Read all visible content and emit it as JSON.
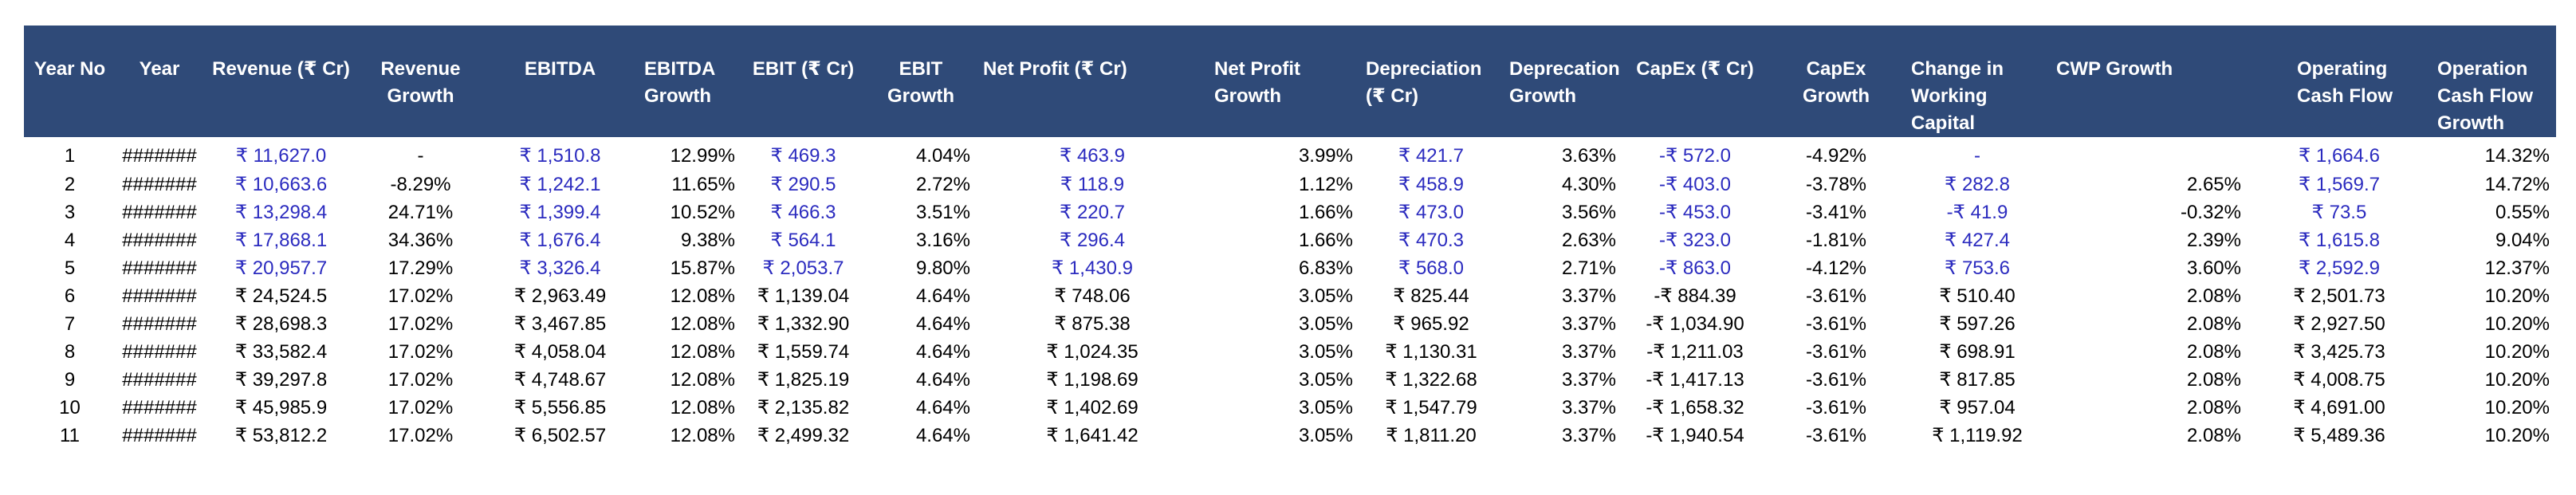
{
  "colors": {
    "header_background": "#2f4a78",
    "header_text": "#ffffff",
    "historical_value_text": "#2b2bbf",
    "forecast_value_text": "#000000"
  },
  "headers": {
    "year_no": "Year No",
    "year": "Year",
    "revenue": "Revenue (₹ Cr)",
    "revenue_growth": "Revenue Growth",
    "ebitda": "EBITDA",
    "ebitda_growth": "EBITDA Growth",
    "ebit": "EBIT (₹ Cr)",
    "ebit_growth": "EBIT Growth",
    "net_profit": "Net Profit (₹ Cr)",
    "net_profit_growth": "Net Profit Growth",
    "depreciation": "Depreciation (₹ Cr)",
    "depreciation_growth": "Deprecation Growth",
    "capex": "CapEx (₹ Cr)",
    "capex_growth": "CapEx Growth",
    "change_wc": "Change in Working Capital",
    "cwp_growth": "CWP Growth",
    "ocf": "Operating Cash Flow",
    "ocf_growth": "Operation Cash Flow Growth"
  },
  "rows": [
    {
      "year_no": "1",
      "year": "#######",
      "revenue": "₹ 11,627.0",
      "revenue_growth": "-",
      "ebitda": "₹ 1,510.8",
      "ebitda_growth": "12.99%",
      "ebit": "₹ 469.3",
      "ebit_growth": "4.04%",
      "net_profit": "₹ 463.9",
      "net_profit_growth": "3.99%",
      "depreciation": "₹ 421.7",
      "depreciation_growth": "3.63%",
      "capex": "-₹ 572.0",
      "capex_growth": "-4.92%",
      "change_wc": "-",
      "cwp_growth": "",
      "ocf": "₹ 1,664.6",
      "ocf_growth": "14.32%"
    },
    {
      "year_no": "2",
      "year": "#######",
      "revenue": "₹ 10,663.6",
      "revenue_growth": "-8.29%",
      "ebitda": "₹ 1,242.1",
      "ebitda_growth": "11.65%",
      "ebit": "₹ 290.5",
      "ebit_growth": "2.72%",
      "net_profit": "₹ 118.9",
      "net_profit_growth": "1.12%",
      "depreciation": "₹ 458.9",
      "depreciation_growth": "4.30%",
      "capex": "-₹ 403.0",
      "capex_growth": "-3.78%",
      "change_wc": "₹ 282.8",
      "cwp_growth": "2.65%",
      "ocf": "₹ 1,569.7",
      "ocf_growth": "14.72%"
    },
    {
      "year_no": "3",
      "year": "#######",
      "revenue": "₹ 13,298.4",
      "revenue_growth": "24.71%",
      "ebitda": "₹ 1,399.4",
      "ebitda_growth": "10.52%",
      "ebit": "₹ 466.3",
      "ebit_growth": "3.51%",
      "net_profit": "₹ 220.7",
      "net_profit_growth": "1.66%",
      "depreciation": "₹ 473.0",
      "depreciation_growth": "3.56%",
      "capex": "-₹ 453.0",
      "capex_growth": "-3.41%",
      "change_wc": "-₹ 41.9",
      "cwp_growth": "-0.32%",
      "ocf": "₹ 73.5",
      "ocf_growth": "0.55%"
    },
    {
      "year_no": "4",
      "year": "#######",
      "revenue": "₹ 17,868.1",
      "revenue_growth": "34.36%",
      "ebitda": "₹ 1,676.4",
      "ebitda_growth": "9.38%",
      "ebit": "₹ 564.1",
      "ebit_growth": "3.16%",
      "net_profit": "₹ 296.4",
      "net_profit_growth": "1.66%",
      "depreciation": "₹ 470.3",
      "depreciation_growth": "2.63%",
      "capex": "-₹ 323.0",
      "capex_growth": "-1.81%",
      "change_wc": "₹ 427.4",
      "cwp_growth": "2.39%",
      "ocf": "₹ 1,615.8",
      "ocf_growth": "9.04%"
    },
    {
      "year_no": "5",
      "year": "#######",
      "revenue": "₹ 20,957.7",
      "revenue_growth": "17.29%",
      "ebitda": "₹ 3,326.4",
      "ebitda_growth": "15.87%",
      "ebit": "₹ 2,053.7",
      "ebit_growth": "9.80%",
      "net_profit": "₹ 1,430.9",
      "net_profit_growth": "6.83%",
      "depreciation": "₹ 568.0",
      "depreciation_growth": "2.71%",
      "capex": "-₹ 863.0",
      "capex_growth": "-4.12%",
      "change_wc": "₹ 753.6",
      "cwp_growth": "3.60%",
      "ocf": "₹ 2,592.9",
      "ocf_growth": "12.37%"
    },
    {
      "year_no": "6",
      "year": "#######",
      "revenue": "₹ 24,524.5",
      "revenue_growth": "17.02%",
      "ebitda": "₹ 2,963.49",
      "ebitda_growth": "12.08%",
      "ebit": "₹ 1,139.04",
      "ebit_growth": "4.64%",
      "net_profit": "₹ 748.06",
      "net_profit_growth": "3.05%",
      "depreciation": "₹ 825.44",
      "depreciation_growth": "3.37%",
      "capex": "-₹ 884.39",
      "capex_growth": "-3.61%",
      "change_wc": "₹ 510.40",
      "cwp_growth": "2.08%",
      "ocf": "₹ 2,501.73",
      "ocf_growth": "10.20%"
    },
    {
      "year_no": "7",
      "year": "#######",
      "revenue": "₹ 28,698.3",
      "revenue_growth": "17.02%",
      "ebitda": "₹ 3,467.85",
      "ebitda_growth": "12.08%",
      "ebit": "₹ 1,332.90",
      "ebit_growth": "4.64%",
      "net_profit": "₹ 875.38",
      "net_profit_growth": "3.05%",
      "depreciation": "₹ 965.92",
      "depreciation_growth": "3.37%",
      "capex": "-₹ 1,034.90",
      "capex_growth": "-3.61%",
      "change_wc": "₹ 597.26",
      "cwp_growth": "2.08%",
      "ocf": "₹ 2,927.50",
      "ocf_growth": "10.20%"
    },
    {
      "year_no": "8",
      "year": "#######",
      "revenue": "₹ 33,582.4",
      "revenue_growth": "17.02%",
      "ebitda": "₹ 4,058.04",
      "ebitda_growth": "12.08%",
      "ebit": "₹ 1,559.74",
      "ebit_growth": "4.64%",
      "net_profit": "₹ 1,024.35",
      "net_profit_growth": "3.05%",
      "depreciation": "₹ 1,130.31",
      "depreciation_growth": "3.37%",
      "capex": "-₹ 1,211.03",
      "capex_growth": "-3.61%",
      "change_wc": "₹ 698.91",
      "cwp_growth": "2.08%",
      "ocf": "₹ 3,425.73",
      "ocf_growth": "10.20%"
    },
    {
      "year_no": "9",
      "year": "#######",
      "revenue": "₹ 39,297.8",
      "revenue_growth": "17.02%",
      "ebitda": "₹ 4,748.67",
      "ebitda_growth": "12.08%",
      "ebit": "₹ 1,825.19",
      "ebit_growth": "4.64%",
      "net_profit": "₹ 1,198.69",
      "net_profit_growth": "3.05%",
      "depreciation": "₹ 1,322.68",
      "depreciation_growth": "3.37%",
      "capex": "-₹ 1,417.13",
      "capex_growth": "-3.61%",
      "change_wc": "₹ 817.85",
      "cwp_growth": "2.08%",
      "ocf": "₹ 4,008.75",
      "ocf_growth": "10.20%"
    },
    {
      "year_no": "10",
      "year": "#######",
      "revenue": "₹ 45,985.9",
      "revenue_growth": "17.02%",
      "ebitda": "₹ 5,556.85",
      "ebitda_growth": "12.08%",
      "ebit": "₹ 2,135.82",
      "ebit_growth": "4.64%",
      "net_profit": "₹ 1,402.69",
      "net_profit_growth": "3.05%",
      "depreciation": "₹ 1,547.79",
      "depreciation_growth": "3.37%",
      "capex": "-₹ 1,658.32",
      "capex_growth": "-3.61%",
      "change_wc": "₹ 957.04",
      "cwp_growth": "2.08%",
      "ocf": "₹ 4,691.00",
      "ocf_growth": "10.20%"
    },
    {
      "year_no": "11",
      "year": "#######",
      "revenue": "₹ 53,812.2",
      "revenue_growth": "17.02%",
      "ebitda": "₹ 6,502.57",
      "ebitda_growth": "12.08%",
      "ebit": "₹ 2,499.32",
      "ebit_growth": "4.64%",
      "net_profit": "₹ 1,641.42",
      "net_profit_growth": "3.05%",
      "depreciation": "₹ 1,811.20",
      "depreciation_growth": "3.37%",
      "capex": "-₹ 1,940.54",
      "capex_growth": "-3.61%",
      "change_wc": "₹ 1,119.92",
      "cwp_growth": "2.08%",
      "ocf": "₹ 5,489.36",
      "ocf_growth": "10.20%"
    }
  ]
}
